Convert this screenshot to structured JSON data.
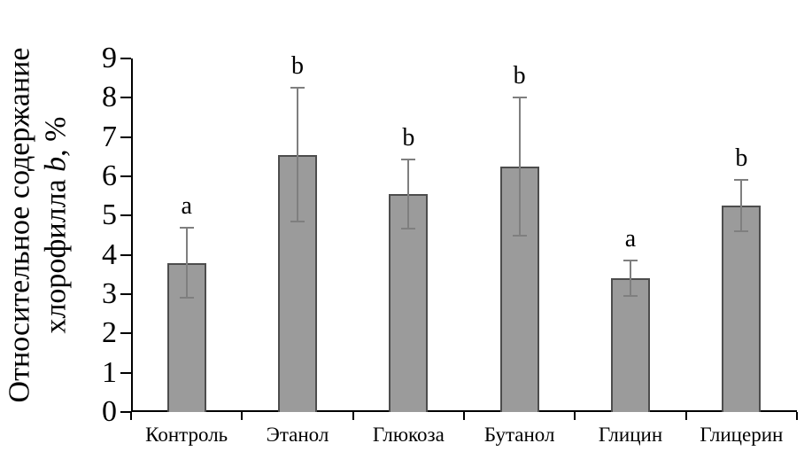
{
  "chart_data": {
    "type": "bar",
    "categories": [
      "Контроль",
      "Этанол",
      "Глюкоза",
      "Бутанол",
      "Глицин",
      "Глицерин"
    ],
    "values": [
      3.8,
      6.55,
      5.55,
      6.25,
      3.4,
      5.25
    ],
    "errors": [
      0.9,
      1.7,
      0.87,
      1.75,
      0.45,
      0.65
    ],
    "significance_letters": [
      "a",
      "b",
      "b",
      "b",
      "a",
      "b"
    ],
    "title": "",
    "xlabel": "",
    "ylabel_line1": "Относительное содержание",
    "ylabel_line2_prefix": "хлорофилла ",
    "ylabel_line2_italic": "b",
    "ylabel_line2_suffix": ", %",
    "ylim": [
      0,
      9
    ],
    "ytick_step": 1,
    "grid": "off",
    "legend": "none",
    "bar_fill_color": "#9b9b9b",
    "bar_border_color": "#4d4d4d",
    "error_bar_color": "#7f7f7f",
    "axis_color": "#000000"
  }
}
